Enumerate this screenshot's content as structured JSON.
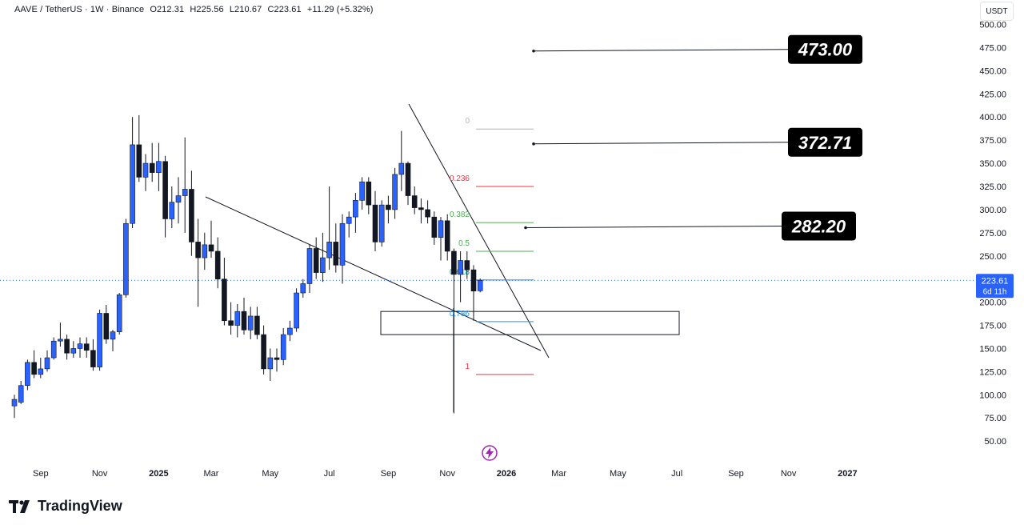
{
  "header": {
    "symbol": "AAVE / TetherUS · 1W · Binance",
    "open": "O212.31",
    "high": "H225.56",
    "low": "L210.67",
    "close": "C223.61",
    "change": "+11.29 (+5.32%)"
  },
  "unit_label": "USDT",
  "logo_text": "TradingView",
  "colors": {
    "up": "#2962ff",
    "down": "#131722",
    "fib_red": "#f23645",
    "fib_green": "#4caf50",
    "fib_teal": "#089981",
    "fib_blue": "#2196f3",
    "price_tag": "#2962ff",
    "bolt": "#9c27b0"
  },
  "chart_data": {
    "type": "candlestick",
    "title": "",
    "ylabel": "USDT",
    "ylim": [
      45,
      505
    ],
    "yticks": [
      "500.00",
      "475.00",
      "450.00",
      "425.00",
      "400.00",
      "375.00",
      "350.00",
      "325.00",
      "300.00",
      "275.00",
      "250.00",
      "225.00",
      "200.00",
      "175.00",
      "150.00",
      "125.00",
      "100.00",
      "75.00",
      "50.00"
    ],
    "ytick_values": [
      500,
      475,
      450,
      425,
      400,
      375,
      350,
      325,
      300,
      275,
      250,
      225,
      200,
      175,
      150,
      125,
      100,
      75,
      50
    ],
    "xticks": [
      {
        "label": "Sep",
        "week": 4,
        "bold": false
      },
      {
        "label": "Nov",
        "week": 13,
        "bold": false
      },
      {
        "label": "2025",
        "week": 22,
        "bold": true
      },
      {
        "label": "Mar",
        "week": 30,
        "bold": false
      },
      {
        "label": "May",
        "week": 39,
        "bold": false
      },
      {
        "label": "Jul",
        "week": 48,
        "bold": false
      },
      {
        "label": "Sep",
        "week": 57,
        "bold": false
      },
      {
        "label": "Nov",
        "week": 66,
        "bold": false
      },
      {
        "label": "2026",
        "week": 75,
        "bold": true
      },
      {
        "label": "Mar",
        "week": 83,
        "bold": false
      },
      {
        "label": "May",
        "week": 92,
        "bold": false
      },
      {
        "label": "Jul",
        "week": 101,
        "bold": false
      },
      {
        "label": "Sep",
        "week": 110,
        "bold": false
      },
      {
        "label": "Nov",
        "week": 118,
        "bold": false
      },
      {
        "label": "2027",
        "week": 127,
        "bold": true
      }
    ],
    "candles": [
      {
        "w": 0,
        "o": 88,
        "h": 100,
        "l": 75,
        "c": 95
      },
      {
        "w": 1,
        "o": 92,
        "h": 115,
        "l": 90,
        "c": 110
      },
      {
        "w": 2,
        "o": 110,
        "h": 138,
        "l": 105,
        "c": 135
      },
      {
        "w": 3,
        "o": 135,
        "h": 148,
        "l": 118,
        "c": 122
      },
      {
        "w": 4,
        "o": 122,
        "h": 140,
        "l": 118,
        "c": 128
      },
      {
        "w": 5,
        "o": 128,
        "h": 148,
        "l": 125,
        "c": 140
      },
      {
        "w": 6,
        "o": 140,
        "h": 162,
        "l": 138,
        "c": 158
      },
      {
        "w": 7,
        "o": 158,
        "h": 178,
        "l": 152,
        "c": 160
      },
      {
        "w": 8,
        "o": 160,
        "h": 165,
        "l": 138,
        "c": 145
      },
      {
        "w": 9,
        "o": 145,
        "h": 158,
        "l": 140,
        "c": 150
      },
      {
        "w": 10,
        "o": 150,
        "h": 162,
        "l": 140,
        "c": 155
      },
      {
        "w": 11,
        "o": 155,
        "h": 162,
        "l": 140,
        "c": 148
      },
      {
        "w": 12,
        "o": 148,
        "h": 160,
        "l": 126,
        "c": 130
      },
      {
        "w": 13,
        "o": 130,
        "h": 192,
        "l": 126,
        "c": 188
      },
      {
        "w": 14,
        "o": 188,
        "h": 197,
        "l": 155,
        "c": 160
      },
      {
        "w": 15,
        "o": 160,
        "h": 170,
        "l": 147,
        "c": 168
      },
      {
        "w": 16,
        "o": 168,
        "h": 210,
        "l": 165,
        "c": 208
      },
      {
        "w": 17,
        "o": 208,
        "h": 290,
        "l": 205,
        "c": 285
      },
      {
        "w": 18,
        "o": 285,
        "h": 400,
        "l": 280,
        "c": 370
      },
      {
        "w": 19,
        "o": 370,
        "h": 402,
        "l": 330,
        "c": 335
      },
      {
        "w": 20,
        "o": 335,
        "h": 360,
        "l": 320,
        "c": 350
      },
      {
        "w": 21,
        "o": 350,
        "h": 372,
        "l": 330,
        "c": 340
      },
      {
        "w": 22,
        "o": 340,
        "h": 372,
        "l": 320,
        "c": 352
      },
      {
        "w": 23,
        "o": 352,
        "h": 358,
        "l": 270,
        "c": 290
      },
      {
        "w": 24,
        "o": 290,
        "h": 325,
        "l": 280,
        "c": 308
      },
      {
        "w": 25,
        "o": 308,
        "h": 335,
        "l": 285,
        "c": 315
      },
      {
        "w": 26,
        "o": 315,
        "h": 378,
        "l": 275,
        "c": 322
      },
      {
        "w": 27,
        "o": 322,
        "h": 342,
        "l": 250,
        "c": 265
      },
      {
        "w": 28,
        "o": 265,
        "h": 290,
        "l": 195,
        "c": 248
      },
      {
        "w": 29,
        "o": 248,
        "h": 275,
        "l": 235,
        "c": 262
      },
      {
        "w": 30,
        "o": 262,
        "h": 288,
        "l": 248,
        "c": 255
      },
      {
        "w": 31,
        "o": 255,
        "h": 270,
        "l": 215,
        "c": 225
      },
      {
        "w": 32,
        "o": 225,
        "h": 248,
        "l": 175,
        "c": 180
      },
      {
        "w": 33,
        "o": 180,
        "h": 200,
        "l": 165,
        "c": 175
      },
      {
        "w": 34,
        "o": 175,
        "h": 198,
        "l": 162,
        "c": 190
      },
      {
        "w": 35,
        "o": 190,
        "h": 205,
        "l": 165,
        "c": 170
      },
      {
        "w": 36,
        "o": 170,
        "h": 195,
        "l": 160,
        "c": 185
      },
      {
        "w": 37,
        "o": 185,
        "h": 195,
        "l": 160,
        "c": 165
      },
      {
        "w": 38,
        "o": 165,
        "h": 175,
        "l": 122,
        "c": 128
      },
      {
        "w": 39,
        "o": 128,
        "h": 150,
        "l": 115,
        "c": 140
      },
      {
        "w": 40,
        "o": 140,
        "h": 150,
        "l": 125,
        "c": 138
      },
      {
        "w": 41,
        "o": 138,
        "h": 172,
        "l": 132,
        "c": 165
      },
      {
        "w": 42,
        "o": 165,
        "h": 180,
        "l": 158,
        "c": 172
      },
      {
        "w": 43,
        "o": 172,
        "h": 215,
        "l": 168,
        "c": 210
      },
      {
        "w": 44,
        "o": 210,
        "h": 225,
        "l": 205,
        "c": 220
      },
      {
        "w": 45,
        "o": 220,
        "h": 262,
        "l": 210,
        "c": 258
      },
      {
        "w": 46,
        "o": 258,
        "h": 270,
        "l": 225,
        "c": 232
      },
      {
        "w": 47,
        "o": 232,
        "h": 275,
        "l": 222,
        "c": 248
      },
      {
        "w": 48,
        "o": 248,
        "h": 325,
        "l": 235,
        "c": 265
      },
      {
        "w": 49,
        "o": 265,
        "h": 285,
        "l": 232,
        "c": 240
      },
      {
        "w": 50,
        "o": 240,
        "h": 295,
        "l": 220,
        "c": 285
      },
      {
        "w": 51,
        "o": 285,
        "h": 298,
        "l": 270,
        "c": 292
      },
      {
        "w": 52,
        "o": 292,
        "h": 318,
        "l": 275,
        "c": 310
      },
      {
        "w": 53,
        "o": 310,
        "h": 335,
        "l": 300,
        "c": 330
      },
      {
        "w": 54,
        "o": 330,
        "h": 335,
        "l": 295,
        "c": 305
      },
      {
        "w": 55,
        "o": 305,
        "h": 320,
        "l": 255,
        "c": 265
      },
      {
        "w": 56,
        "o": 265,
        "h": 310,
        "l": 260,
        "c": 305
      },
      {
        "w": 57,
        "o": 305,
        "h": 315,
        "l": 285,
        "c": 300
      },
      {
        "w": 58,
        "o": 300,
        "h": 345,
        "l": 290,
        "c": 338
      },
      {
        "w": 59,
        "o": 338,
        "h": 385,
        "l": 320,
        "c": 350
      },
      {
        "w": 60,
        "o": 350,
        "h": 352,
        "l": 305,
        "c": 315
      },
      {
        "w": 61,
        "o": 315,
        "h": 325,
        "l": 295,
        "c": 302
      },
      {
        "w": 62,
        "o": 302,
        "h": 312,
        "l": 285,
        "c": 300
      },
      {
        "w": 63,
        "o": 300,
        "h": 310,
        "l": 285,
        "c": 292
      },
      {
        "w": 64,
        "o": 292,
        "h": 298,
        "l": 262,
        "c": 270
      },
      {
        "w": 65,
        "o": 270,
        "h": 292,
        "l": 245,
        "c": 288
      },
      {
        "w": 66,
        "o": 288,
        "h": 295,
        "l": 245,
        "c": 255
      },
      {
        "w": 67,
        "o": 255,
        "h": 258,
        "l": 80,
        "c": 230
      },
      {
        "w": 68,
        "o": 230,
        "h": 255,
        "l": 200,
        "c": 245
      },
      {
        "w": 69,
        "o": 245,
        "h": 255,
        "l": 225,
        "c": 235
      },
      {
        "w": 70,
        "o": 235,
        "h": 240,
        "l": 180,
        "c": 212
      },
      {
        "w": 71,
        "o": 212.31,
        "h": 225.56,
        "l": 210.67,
        "c": 223.61
      }
    ],
    "fib_levels": [
      {
        "label": "0",
        "price": 387,
        "color": "#b2b5be"
      },
      {
        "label": "0.236",
        "price": 325,
        "color": "#f23645"
      },
      {
        "label": "0.382",
        "price": 286,
        "color": "#4caf50"
      },
      {
        "label": "0.5",
        "price": 255,
        "color": "#4caf50"
      },
      {
        "label": "0.618",
        "price": 224,
        "color": "#089981"
      },
      {
        "label": "0.786",
        "price": 179,
        "color": "#2196f3"
      },
      {
        "label": "1",
        "price": 122,
        "color": "#f23645"
      }
    ],
    "targets": [
      {
        "label": "473.00",
        "price": 473
      },
      {
        "label": "372.71",
        "price": 372.71
      },
      {
        "label": "282.20",
        "price": 282.2
      }
    ],
    "current_price": {
      "label": "223.61",
      "countdown": "6d 11h",
      "price": 223.61
    },
    "support_zone": {
      "low": 165,
      "high": 190
    }
  }
}
